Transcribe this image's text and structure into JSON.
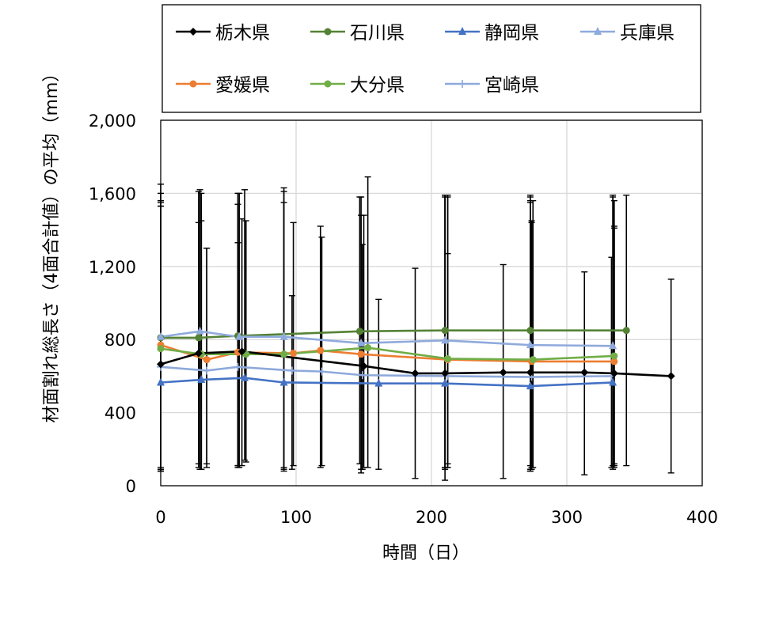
{
  "chart_data": {
    "type": "line",
    "xlabel": "時間（日）",
    "ylabel": "材面割れ総長さ（4面合計値）の平均（mm）",
    "xlim": [
      0,
      400
    ],
    "ylim": [
      0,
      2000
    ],
    "xticks": [
      0,
      100,
      200,
      300,
      400
    ],
    "xtick_labels": [
      "0",
      "100",
      "200",
      "300",
      "400"
    ],
    "yticks": [
      0,
      400,
      800,
      1200,
      1600,
      2000
    ],
    "ytick_labels": [
      "0",
      "400",
      "800",
      "1,200",
      "1,600",
      "2,000"
    ],
    "grid": true,
    "legend_position": "top",
    "series": [
      {
        "name": "栃木県",
        "color": "#000000",
        "marker": "diamond",
        "x": [
          0,
          28,
          60,
          150,
          188,
          210,
          253,
          273,
          313,
          335,
          377
        ],
        "y": [
          665,
          725,
          735,
          655,
          615,
          615,
          620,
          620,
          620,
          615,
          600
        ],
        "err_low": [
          90,
          120,
          110,
          100,
          40,
          30,
          40,
          80,
          60,
          100,
          70
        ],
        "err_high": [
          1560,
          1440,
          1460,
          1480,
          1190,
          1580,
          1210,
          1580,
          1170,
          1560,
          1130
        ]
      },
      {
        "name": "石川県",
        "color": "#548235",
        "marker": "circle",
        "x": [
          0,
          28,
          57,
          147,
          210,
          273,
          344
        ],
        "y": [
          810,
          810,
          820,
          845,
          850,
          850,
          850
        ],
        "err_low": [
          90,
          100,
          110,
          120,
          100,
          110,
          110
        ],
        "err_high": [
          1650,
          1610,
          1540,
          1580,
          1590,
          1590,
          1590
        ]
      },
      {
        "name": "静岡県",
        "color": "#4472C4",
        "marker": "triangle",
        "x": [
          0,
          30,
          62,
          91,
          161,
          210,
          273,
          334
        ],
        "y": [
          565,
          580,
          590,
          565,
          560,
          560,
          545,
          565
        ],
        "err_low": [
          90,
          90,
          140,
          100,
          90,
          100,
          90,
          90
        ],
        "err_high": [
          1550,
          1600,
          1620,
          1630,
          1020,
          1590,
          1560,
          1590
        ]
      },
      {
        "name": "兵庫県",
        "color": "#8FAADC",
        "marker": "triangle",
        "x": [
          0,
          29,
          58,
          91,
          148,
          210,
          273,
          334
        ],
        "y": [
          815,
          845,
          815,
          815,
          780,
          795,
          770,
          765
        ],
        "err_low": [
          80,
          90,
          100,
          80,
          70,
          90,
          80,
          110
        ],
        "err_high": [
          1600,
          1620,
          1600,
          1610,
          1580,
          1590,
          1550,
          1580
        ]
      },
      {
        "name": "愛媛県",
        "color": "#ED7D31",
        "marker": "circle",
        "x": [
          0,
          34,
          57,
          98,
          118,
          148,
          212,
          274,
          335
        ],
        "y": [
          770,
          690,
          730,
          725,
          740,
          720,
          690,
          680,
          680
        ],
        "err_low": [
          80,
          100,
          110,
          110,
          100,
          90,
          120,
          100,
          120
        ],
        "err_high": [
          1530,
          1300,
          1330,
          1440,
          1420,
          1480,
          1270,
          1450,
          1420
        ]
      },
      {
        "name": "大分県",
        "color": "#70AD47",
        "marker": "circle",
        "x": [
          0,
          30,
          63,
          91,
          153,
          212,
          275,
          335
        ],
        "y": [
          750,
          720,
          720,
          720,
          755,
          695,
          690,
          710
        ],
        "err_low": [
          100,
          90,
          130,
          90,
          100,
          100,
          100,
          110
        ],
        "err_high": [
          1560,
          1450,
          1450,
          1550,
          1690,
          1590,
          1560,
          1410
        ]
      },
      {
        "name": "宮崎県",
        "color": "#8EA9DB",
        "marker": "plus",
        "x": [
          0,
          34,
          57,
          97,
          119,
          149,
          212,
          274,
          333
        ],
        "y": [
          650,
          630,
          650,
          630,
          625,
          605,
          600,
          595,
          600
        ],
        "err_low": [
          80,
          120,
          100,
          90,
          110,
          90,
          100,
          90,
          100
        ],
        "err_high": [
          1530,
          1300,
          1600,
          1040,
          1360,
          1320,
          1580,
          1440,
          1250
        ]
      }
    ]
  }
}
